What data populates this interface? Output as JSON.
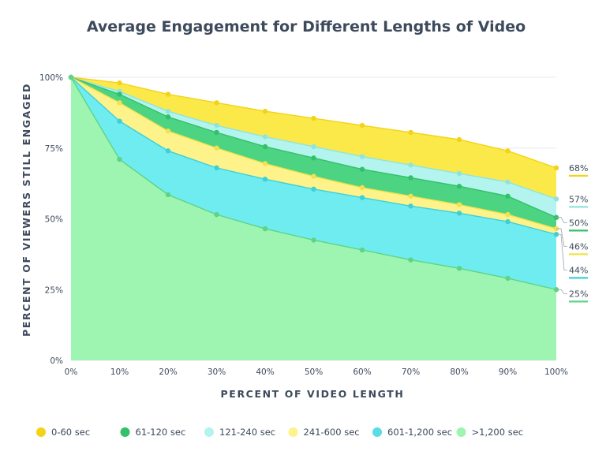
{
  "chart_data": {
    "type": "area",
    "title": "Average Engagement for Different Lengths of Video",
    "xlabel": "PERCENT OF VIDEO LENGTH",
    "ylabel": "PERCENT OF VIEWERS STILL ENGAGED",
    "x": [
      0,
      10,
      20,
      30,
      40,
      50,
      60,
      70,
      80,
      90,
      100
    ],
    "x_tick_labels": [
      "0%",
      "10%",
      "20%",
      "30%",
      "40%",
      "50%",
      "60%",
      "70%",
      "80%",
      "90%",
      "100%"
    ],
    "y_ticks": [
      0,
      25,
      50,
      75,
      100
    ],
    "y_tick_labels": [
      "0%",
      "25%",
      "50%",
      "75%",
      "100%"
    ],
    "ylim": [
      0,
      100
    ],
    "grid": "horizontal",
    "legend_position": "bottom",
    "series": [
      {
        "name": "0-60 sec",
        "color": "#fbe94a",
        "line_color": "#f3d318",
        "end_label": "68%",
        "values": [
          100,
          98,
          94,
          91,
          88,
          85.5,
          83,
          80.5,
          78,
          74,
          68
        ]
      },
      {
        "name": "121-240 sec",
        "color": "#b4f4ee",
        "line_color": "#8ee4e0",
        "end_label": "57%",
        "values": [
          100,
          95,
          88,
          83,
          79,
          75.5,
          72,
          69,
          66,
          63,
          57
        ]
      },
      {
        "name": "61-120 sec",
        "color": "#4dd482",
        "line_color": "#33c06b",
        "end_label": "50%",
        "values": [
          100,
          94,
          86,
          80.5,
          75.5,
          71.5,
          67.5,
          64.5,
          61.5,
          58,
          50.5
        ]
      },
      {
        "name": "241-600 sec",
        "color": "#fdf38a",
        "line_color": "#f3e14e",
        "end_label": "46%",
        "values": [
          100,
          91,
          81,
          75,
          69.5,
          65,
          61,
          58,
          55,
          51.5,
          46.5
        ]
      },
      {
        "name": "601-1,200 sec",
        "color": "#6fecf0",
        "line_color": "#3fcfda",
        "end_label": "44%",
        "values": [
          100,
          84.5,
          74,
          68,
          64,
          60.5,
          57.5,
          54.5,
          52,
          49,
          44.5
        ]
      },
      {
        "name": ">1,200 sec",
        "color": "#9ef5b2",
        "line_color": "#5ed486",
        "end_label": "25%",
        "values": [
          100,
          71,
          58.5,
          51.5,
          46.5,
          42.5,
          39,
          35.5,
          32.5,
          29,
          25
        ]
      }
    ],
    "legend": [
      {
        "label": "0-60 sec",
        "color": "#f3d318"
      },
      {
        "label": "61-120 sec",
        "color": "#33c06b"
      },
      {
        "label": "121-240 sec",
        "color": "#b4f4ee"
      },
      {
        "label": "241-600 sec",
        "color": "#fdf38a"
      },
      {
        "label": "601-1,200 sec",
        "color": "#58dce6"
      },
      {
        "label": ">1,200 sec",
        "color": "#9ef5b2"
      }
    ]
  }
}
